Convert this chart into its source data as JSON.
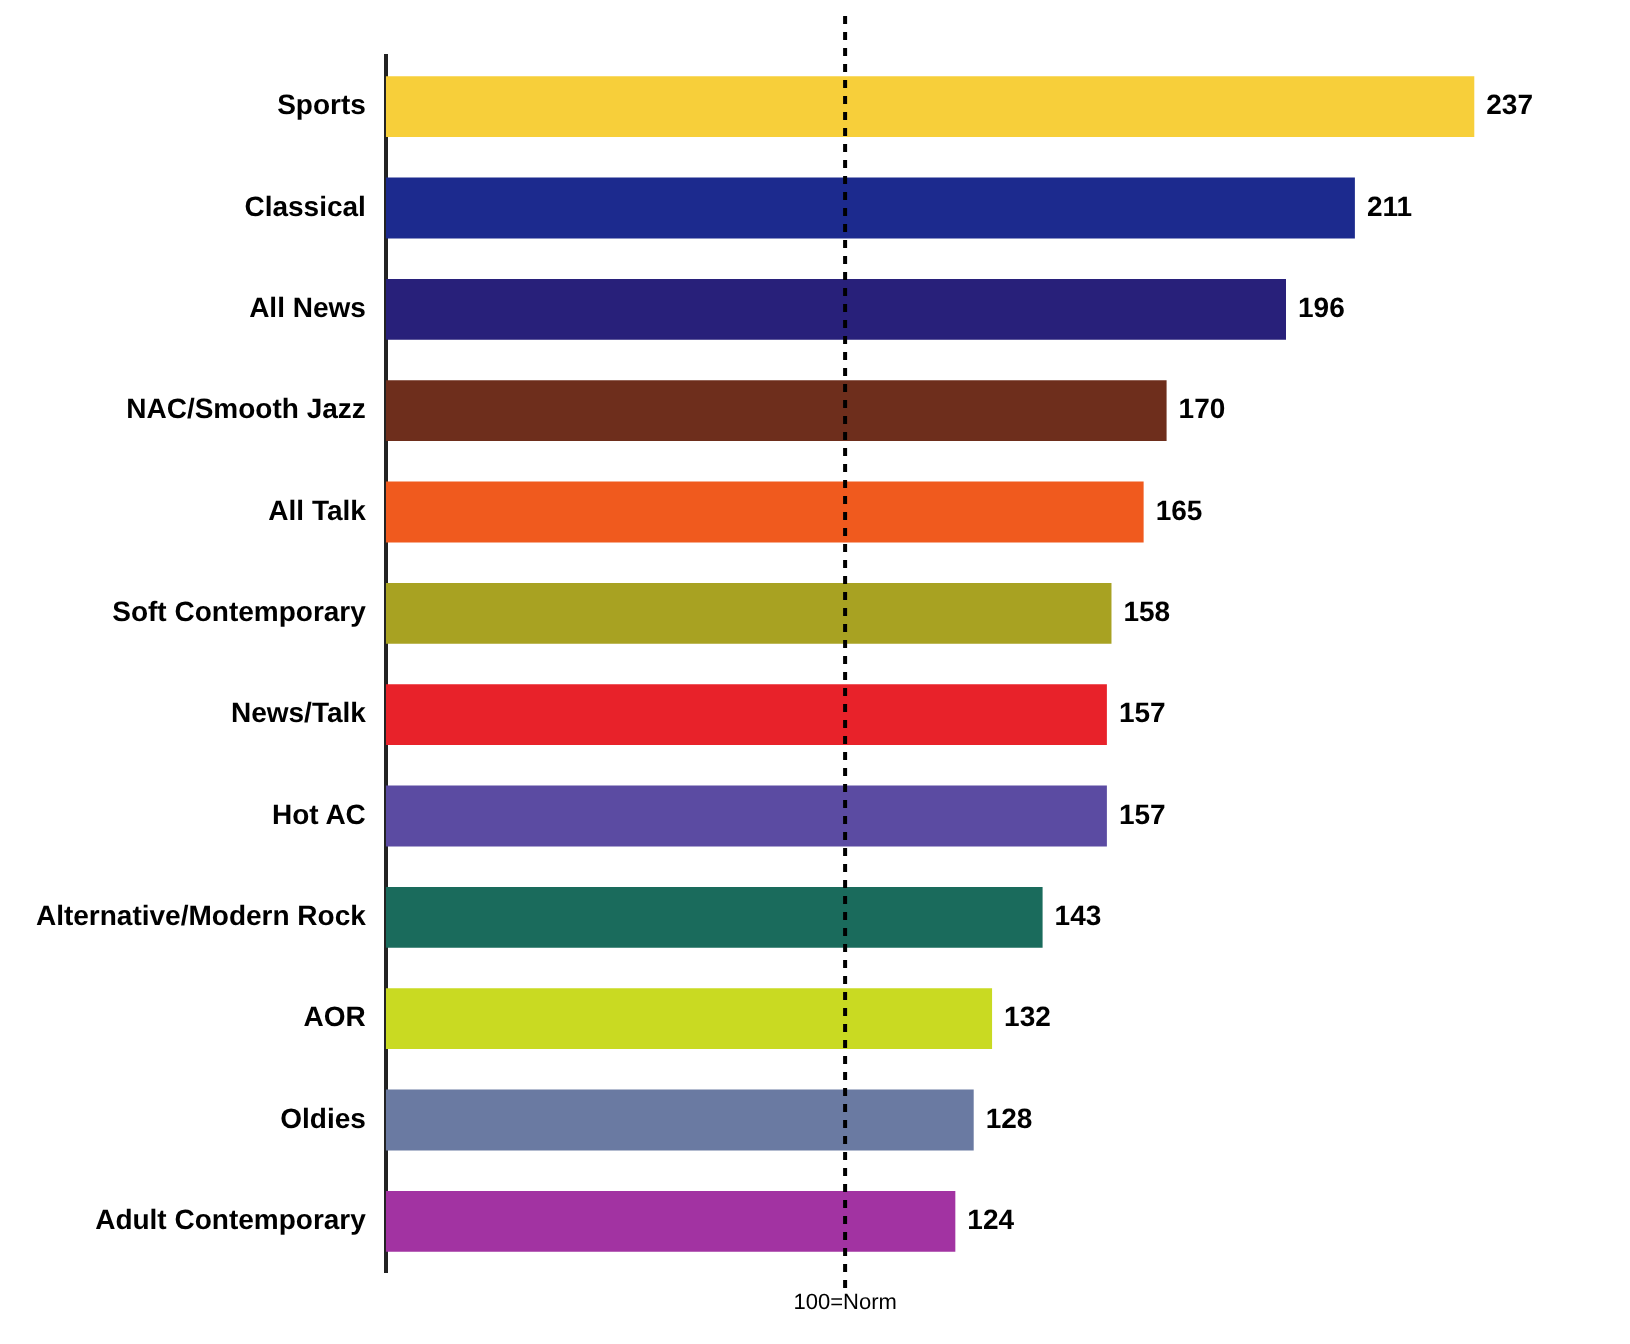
{
  "chart_data": {
    "type": "bar",
    "orientation": "horizontal",
    "categories": [
      "Sports",
      "Classical",
      "All News",
      "NAC/Smooth Jazz",
      "All Talk",
      "Soft Contemporary",
      "News/Talk",
      "Hot AC",
      "Alternative/Modern Rock",
      "AOR",
      "Oldies",
      "Adult Contemporary"
    ],
    "values": [
      237,
      211,
      196,
      170,
      165,
      158,
      157,
      157,
      143,
      132,
      128,
      124
    ],
    "colors": [
      "#f7cf3a",
      "#1c2a8e",
      "#28207a",
      "#6e2e1c",
      "#f05a1e",
      "#a8a222",
      "#e8222a",
      "#5b4ba2",
      "#1a6b5c",
      "#c9da22",
      "#6a7aa2",
      "#a233a2"
    ],
    "ref_lines": [
      {
        "axis": "x",
        "value": 100,
        "label": "100=Norm",
        "color": "#000000",
        "line_style": "dashed"
      }
    ],
    "data_labels": true,
    "grid": false,
    "legend": false
  }
}
